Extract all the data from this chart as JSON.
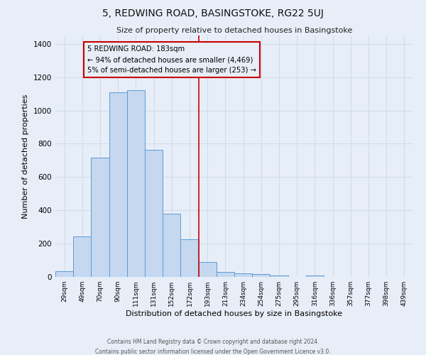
{
  "title": "5, REDWING ROAD, BASINGSTOKE, RG22 5UJ",
  "subtitle": "Size of property relative to detached houses in Basingstoke",
  "xlabel": "Distribution of detached houses by size in Basingstoke",
  "ylabel": "Number of detached properties",
  "bar_labels": [
    "29sqm",
    "49sqm",
    "70sqm",
    "90sqm",
    "111sqm",
    "131sqm",
    "152sqm",
    "172sqm",
    "193sqm",
    "213sqm",
    "234sqm",
    "254sqm",
    "275sqm",
    "295sqm",
    "316sqm",
    "336sqm",
    "357sqm",
    "377sqm",
    "398sqm",
    "439sqm"
  ],
  "bar_heights": [
    35,
    243,
    718,
    1107,
    1123,
    762,
    378,
    228,
    90,
    28,
    20,
    15,
    7,
    0,
    10,
    0,
    0,
    0,
    0,
    0
  ],
  "bar_color": "#c5d8f0",
  "bar_edge_color": "#5b9bd5",
  "vline_index": 7.5,
  "property_line_label": "5 REDWING ROAD: 183sqm",
  "annotation_line1": "← 94% of detached houses are smaller (4,469)",
  "annotation_line2": "5% of semi-detached houses are larger (253) →",
  "annotation_box_edge": "#cc0000",
  "vline_color": "#cc0000",
  "grid_color": "#d0dcec",
  "background_color": "#e8eef8",
  "footnote1": "Contains HM Land Registry data © Crown copyright and database right 2024.",
  "footnote2": "Contains public sector information licensed under the Open Government Licence v3.0.",
  "ylim": [
    0,
    1450
  ],
  "yticks": [
    0,
    200,
    400,
    600,
    800,
    1000,
    1200,
    1400
  ]
}
